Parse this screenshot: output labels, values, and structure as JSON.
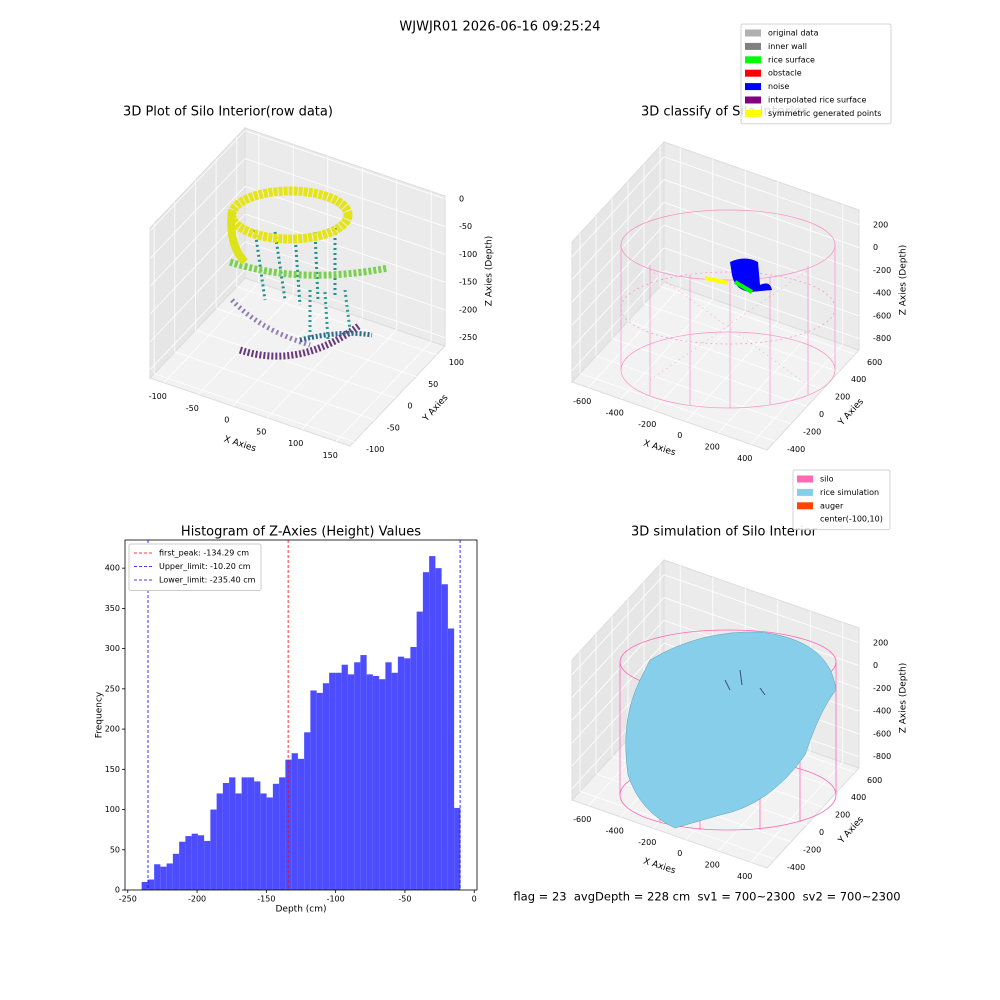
{
  "title": "WJWJR01 2026-06-16 09:25:24",
  "footer": "flag = 23  avgDepth = 228 cm  sv1 = 700~2300  sv2 = 700~2300",
  "chart_data": [
    {
      "type": "scatter3d",
      "title": "3D Plot of Silo Interior(row data)",
      "xlabel": "X Axies",
      "ylabel": "Y Axies",
      "zlabel": "Z Axies (Depth)",
      "xlim": [
        -120,
        170
      ],
      "ylim": [
        -110,
        120
      ],
      "zlim": [
        -265,
        5
      ],
      "xticks": [
        -100,
        -50,
        0,
        50,
        100,
        150
      ],
      "yticks": [
        -100,
        -50,
        0,
        50,
        100
      ],
      "zticks": [
        0,
        -50,
        -100,
        -150,
        -200,
        -250
      ]
    },
    {
      "type": "scatter3d",
      "title": "3D classify of Silo Interior",
      "xlabel": "X Axies",
      "ylabel": "Y Axies",
      "zlabel": "Z Axies (Depth)",
      "xlim": [
        -700,
        500
      ],
      "ylim": [
        -500,
        650
      ],
      "zlim": [
        -900,
        330
      ],
      "xticks": [
        -600,
        -400,
        -200,
        0,
        200,
        400
      ],
      "yticks": [
        -400,
        -200,
        0,
        200,
        400,
        600
      ],
      "zticks": [
        200,
        0,
        -200,
        -400,
        -600,
        -800
      ],
      "legend": [
        {
          "name": "original data",
          "color": "#b0b0b0"
        },
        {
          "name": "inner wall",
          "color": "#808080"
        },
        {
          "name": "rice surface",
          "color": "#00ff00"
        },
        {
          "name": "obstacle",
          "color": "#ff0000"
        },
        {
          "name": "noise",
          "color": "#0000ff"
        },
        {
          "name": "interpolated rice surface",
          "color": "#800080"
        },
        {
          "name": "symmetric generated points",
          "color": "#ffff00"
        }
      ]
    },
    {
      "type": "histogram",
      "title": "Histogram of Z-Axies (Height) Values",
      "xlabel": "Depth (cm)",
      "ylabel": "Frequency",
      "color": "#4d4dff",
      "bins": [
        -240,
        -235.49,
        -230.98,
        -226.47,
        -221.96,
        -217.45,
        -212.94,
        -208.43,
        -203.92,
        -199.41,
        -194.9,
        -190.39,
        -185.88,
        -181.37,
        -176.86,
        -172.35,
        -167.84,
        -163.33,
        -158.82,
        -154.31,
        -149.8,
        -145.29,
        -140.78,
        -136.27,
        -131.76,
        -127.25,
        -122.74,
        -118.23,
        -113.72,
        -109.21,
        -104.7,
        -100.19,
        -95.68,
        -91.17,
        -86.66,
        -82.15,
        -77.64,
        -73.13,
        -68.62,
        -64.11,
        -59.6,
        -55.09,
        -50.58,
        -46.07,
        -41.56,
        -37.05,
        -32.54,
        -28.03,
        -23.52,
        -19.01,
        -14.5,
        -9.99
      ],
      "values": [
        10,
        13,
        32,
        29,
        33,
        45,
        60,
        67,
        70,
        68,
        61,
        100,
        120,
        133,
        140,
        120,
        140,
        140,
        135,
        120,
        115,
        132,
        140,
        162,
        170,
        163,
        196,
        248,
        245,
        257,
        270,
        270,
        280,
        268,
        283,
        292,
        268,
        266,
        262,
        283,
        270,
        290,
        288,
        302,
        346,
        395,
        415,
        400,
        380,
        325,
        102
      ],
      "lines": [
        {
          "name": "first_peak: -134.29 cm",
          "value": -134.29,
          "color": "#ff0000"
        },
        {
          "name": "Upper_limit: -10.20 cm",
          "value": -10.2,
          "color": "#0000ff"
        },
        {
          "name": "Lower_limit: -235.40 cm",
          "value": -235.4,
          "color": "#0000ff"
        }
      ],
      "legend_position": "upper left",
      "xlim": [
        -252,
        2
      ],
      "ylim": [
        0,
        435
      ],
      "xticks": [
        -250,
        -200,
        -150,
        -100,
        -50,
        0
      ],
      "yticks": [
        0,
        50,
        100,
        150,
        200,
        250,
        300,
        350,
        400
      ]
    },
    {
      "type": "surface3d",
      "title": "3D simulation of Silo Interior",
      "xlabel": "X Axies",
      "ylabel": "Y Axies",
      "zlabel": "Z Axies (Depth)",
      "xlim": [
        -700,
        500
      ],
      "ylim": [
        -500,
        650
      ],
      "zlim": [
        -900,
        330
      ],
      "xticks": [
        -600,
        -400,
        -200,
        0,
        200,
        400
      ],
      "yticks": [
        -400,
        -200,
        0,
        200,
        400,
        600
      ],
      "zticks": [
        200,
        0,
        -200,
        -400,
        -600,
        -800
      ],
      "legend": [
        {
          "name": "silo",
          "color": "#ff69b4"
        },
        {
          "name": "rice simulation",
          "color": "#87ceeb"
        },
        {
          "name": "auger",
          "color": "#ff4500"
        },
        {
          "name": "center(-100,10)"
        }
      ]
    }
  ]
}
